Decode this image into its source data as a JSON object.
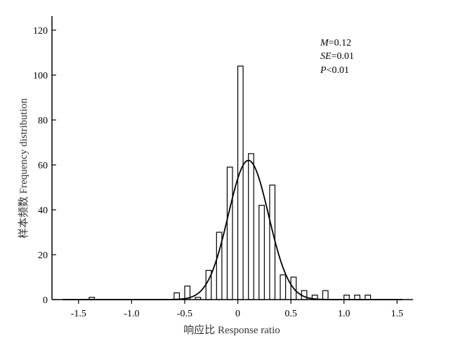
{
  "chart_data": {
    "type": "bar",
    "subtype": "histogram",
    "bin_width": 0.05,
    "xlabel": "响应比 Response ratio",
    "ylabel": "样本频数 Frequency distribution",
    "xlim": [
      -1.75,
      1.65
    ],
    "ylim": [
      0,
      120
    ],
    "xticks": [
      -1.5,
      -1.0,
      -0.5,
      0,
      0.5,
      1.0,
      1.5
    ],
    "xtick_labels": [
      "-1.5",
      "-1.0",
      "-0.5",
      "0",
      "0.5",
      "1.0",
      "1.5"
    ],
    "yticks": [
      0,
      20,
      40,
      60,
      80,
      100,
      120
    ],
    "ytick_labels": [
      "0",
      "20",
      "40",
      "60",
      "80",
      "100",
      "120"
    ],
    "bins": [
      {
        "x0": -1.4,
        "count": 1
      },
      {
        "x0": -0.6,
        "count": 3
      },
      {
        "x0": -0.5,
        "count": 6
      },
      {
        "x0": -0.4,
        "count": 1
      },
      {
        "x0": -0.3,
        "count": 13
      },
      {
        "x0": -0.2,
        "count": 30
      },
      {
        "x0": -0.1,
        "count": 59
      },
      {
        "x0": 0.0,
        "count": 104
      },
      {
        "x0": 0.1,
        "count": 65
      },
      {
        "x0": 0.2,
        "count": 42
      },
      {
        "x0": 0.3,
        "count": 51
      },
      {
        "x0": 0.4,
        "count": 11
      },
      {
        "x0": 0.5,
        "count": 10
      },
      {
        "x0": 0.6,
        "count": 4
      },
      {
        "x0": 0.7,
        "count": 2
      },
      {
        "x0": 0.8,
        "count": 4
      },
      {
        "x0": 1.0,
        "count": 2
      },
      {
        "x0": 1.1,
        "count": 2
      },
      {
        "x0": 1.2,
        "count": 2
      }
    ],
    "fit_curve": {
      "type": "normal",
      "mean": 0.1,
      "sd": 0.19,
      "peak": 62
    },
    "grid": false,
    "annotations": [
      {
        "label": "M",
        "value": "=0.12"
      },
      {
        "label": "SE",
        "value": "=0.01"
      },
      {
        "label": "P",
        "value": "<0.01"
      }
    ]
  }
}
